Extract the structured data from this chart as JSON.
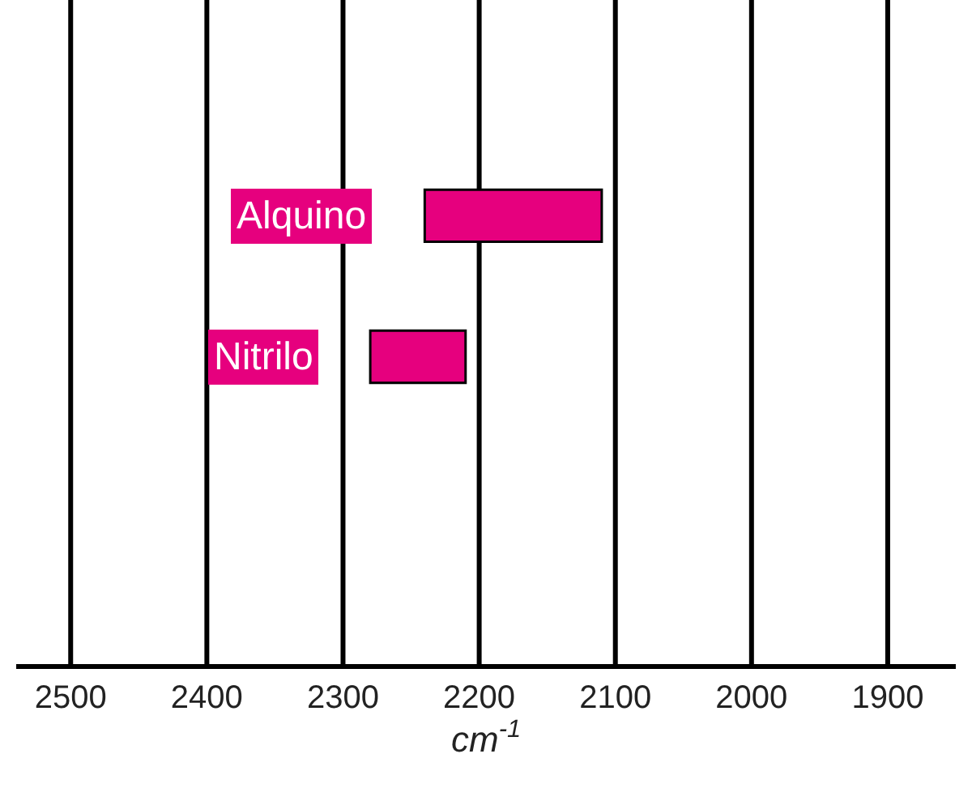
{
  "chart_data": {
    "type": "bar",
    "orientation": "horizontal",
    "categories": [
      "Alquino",
      "Nitrilo"
    ],
    "values": [
      130,
      70
    ],
    "base": [
      2110,
      2210
    ],
    "color": "#e6007e",
    "xlim": [
      2540,
      1850
    ],
    "xticks": [
      2500,
      2400,
      2300,
      2200,
      2100,
      2000,
      1900
    ],
    "xlabel": "cm$^{-1}$",
    "grid": "x"
  }
}
